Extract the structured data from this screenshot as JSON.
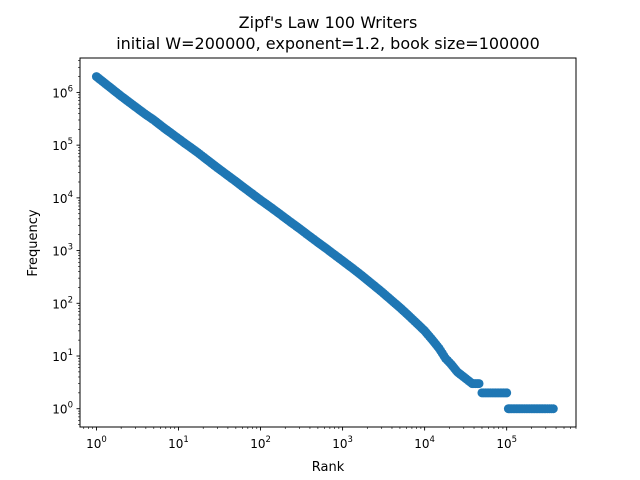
{
  "chart_data": {
    "type": "scatter",
    "title": "Zipf's Law 100 Writers",
    "subtitle": "initial W=200000, exponent=1.2, book size=100000",
    "xlabel": "Rank",
    "ylabel": "Frequency",
    "xscale": "log",
    "yscale": "log",
    "xlim": [
      0.63,
      700000
    ],
    "ylim": [
      0.45,
      4500000
    ],
    "grid": false,
    "marker_color": "#1f77b4",
    "x_ticks": [
      {
        "value": 1,
        "base": "10",
        "exp": "0"
      },
      {
        "value": 10,
        "base": "10",
        "exp": "1"
      },
      {
        "value": 100,
        "base": "10",
        "exp": "2"
      },
      {
        "value": 1000,
        "base": "10",
        "exp": "3"
      },
      {
        "value": 10000,
        "base": "10",
        "exp": "4"
      },
      {
        "value": 100000,
        "base": "10",
        "exp": "5"
      }
    ],
    "y_ticks": [
      {
        "value": 1,
        "base": "10",
        "exp": "0"
      },
      {
        "value": 10,
        "base": "10",
        "exp": "1"
      },
      {
        "value": 100,
        "base": "10",
        "exp": "2"
      },
      {
        "value": 1000,
        "base": "10",
        "exp": "3"
      },
      {
        "value": 10000,
        "base": "10",
        "exp": "4"
      },
      {
        "value": 100000,
        "base": "10",
        "exp": "5"
      },
      {
        "value": 1000000,
        "base": "10",
        "exp": "6"
      }
    ],
    "points": [
      [
        1,
        2000000
      ],
      [
        2,
        850000
      ],
      [
        3,
        530000
      ],
      [
        4,
        380000
      ],
      [
        5,
        300000
      ],
      [
        6,
        240000
      ],
      [
        7,
        200000
      ],
      [
        8,
        172000
      ],
      [
        9,
        150000
      ],
      [
        10,
        133000
      ],
      [
        12,
        108000
      ],
      [
        14,
        91000
      ],
      [
        17,
        73000
      ],
      [
        20,
        60000
      ],
      [
        25,
        46000
      ],
      [
        30,
        37000
      ],
      [
        40,
        26500
      ],
      [
        50,
        20500
      ],
      [
        60,
        16500
      ],
      [
        80,
        11800
      ],
      [
        100,
        9100
      ],
      [
        130,
        6800
      ],
      [
        170,
        5000
      ],
      [
        220,
        3700
      ],
      [
        300,
        2600
      ],
      [
        400,
        1850
      ],
      [
        500,
        1430
      ],
      [
        650,
        1060
      ],
      [
        800,
        830
      ],
      [
        1000,
        640
      ],
      [
        1300,
        470
      ],
      [
        1700,
        340
      ],
      [
        2200,
        245
      ],
      [
        3000,
        165
      ],
      [
        4000,
        112
      ],
      [
        5000,
        83
      ],
      [
        6500,
        57
      ],
      [
        8000,
        42
      ],
      [
        10000,
        30
      ],
      [
        12500,
        20
      ],
      [
        15000,
        14
      ],
      [
        18000,
        9
      ],
      [
        21000,
        7
      ],
      [
        25000,
        5
      ],
      [
        30000,
        4
      ],
      [
        38000,
        3
      ],
      [
        46000,
        3
      ],
      [
        50000,
        2
      ],
      [
        70000,
        2
      ],
      [
        100000,
        2
      ],
      [
        105000,
        1
      ],
      [
        150000,
        1
      ],
      [
        200000,
        1
      ],
      [
        300000,
        1
      ],
      [
        370000,
        1
      ]
    ]
  }
}
